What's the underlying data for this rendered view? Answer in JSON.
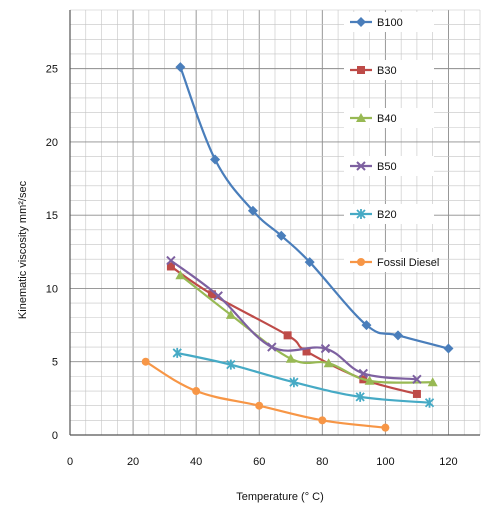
{
  "chart_data": {
    "type": "line",
    "title": "",
    "xlabel": "Temperature (° C)",
    "ylabel": "Kinematic viscosity mm²/sec",
    "xlim": [
      0,
      130
    ],
    "ylim": [
      0,
      29
    ],
    "x_ticks": [
      "0",
      "20",
      "40",
      "60",
      "80",
      "100",
      "120"
    ],
    "y_ticks": [
      "0",
      "5",
      "10",
      "15",
      "20",
      "25"
    ],
    "grid": true,
    "legend_position": "right",
    "series": [
      {
        "name": "B100",
        "color": "#4a7ebb",
        "marker": "diamond",
        "points": [
          [
            35,
            25.1
          ],
          [
            46,
            18.8
          ],
          [
            58,
            15.3
          ],
          [
            67,
            13.6
          ],
          [
            76,
            11.8
          ],
          [
            94,
            7.5
          ],
          [
            104,
            6.8
          ],
          [
            120,
            5.9
          ]
        ]
      },
      {
        "name": "B30",
        "color": "#be4b48",
        "marker": "square",
        "points": [
          [
            32,
            11.5
          ],
          [
            45,
            9.6
          ],
          [
            69,
            6.8
          ],
          [
            75,
            5.7
          ],
          [
            93,
            3.8
          ],
          [
            110,
            2.8
          ]
        ]
      },
      {
        "name": "B40",
        "color": "#98b954",
        "marker": "triangle",
        "points": [
          [
            35,
            10.9
          ],
          [
            51,
            8.2
          ],
          [
            70,
            5.2
          ],
          [
            82,
            4.9
          ],
          [
            95,
            3.7
          ],
          [
            115,
            3.6
          ]
        ]
      },
      {
        "name": "B50",
        "color": "#7d60a0",
        "marker": "x",
        "points": [
          [
            32,
            11.9
          ],
          [
            47,
            9.5
          ],
          [
            64,
            6.0
          ],
          [
            81,
            5.9
          ],
          [
            93,
            4.2
          ],
          [
            110,
            3.8
          ]
        ]
      },
      {
        "name": "B20",
        "color": "#46aac5",
        "marker": "asterisk",
        "points": [
          [
            34,
            5.6
          ],
          [
            51,
            4.8
          ],
          [
            71,
            3.6
          ],
          [
            92,
            2.6
          ],
          [
            114,
            2.2
          ]
        ]
      },
      {
        "name": "Fossil Diesel",
        "color": "#f79646",
        "marker": "circle",
        "points": [
          [
            24,
            5.0
          ],
          [
            40,
            3.0
          ],
          [
            60,
            2.0
          ],
          [
            80,
            1.0
          ],
          [
            100,
            0.5
          ]
        ]
      }
    ]
  }
}
